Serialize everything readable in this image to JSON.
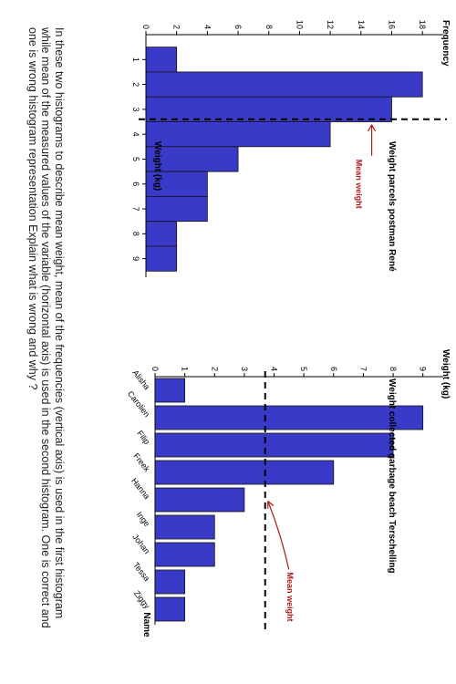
{
  "colors": {
    "bar": "#3a3ac8",
    "bar_edge": "#111111",
    "mean_line": "#000000",
    "annotation": "#b01818"
  },
  "chart_data": [
    {
      "type": "bar",
      "title": "Weight parcels postman René",
      "xlabel": "Weight (kg)",
      "ylabel": "Frequency",
      "categories": [
        "1",
        "2",
        "3",
        "4",
        "5",
        "6",
        "7",
        "8",
        "9"
      ],
      "bins": [
        [
          0.5,
          1.5
        ],
        [
          1.5,
          2.5
        ],
        [
          2.5,
          3.5
        ],
        [
          3.5,
          4.5
        ],
        [
          4.5,
          5.5
        ],
        [
          5.5,
          6.5
        ],
        [
          6.5,
          7.5
        ],
        [
          7.5,
          8.5
        ],
        [
          8.5,
          9.5
        ]
      ],
      "values": [
        2,
        18,
        16,
        12,
        6,
        4,
        4,
        2,
        2
      ],
      "xlim": [
        0,
        9.6
      ],
      "ylim": [
        0,
        19
      ],
      "yticks": [
        0,
        2,
        4,
        6,
        8,
        10,
        12,
        14,
        16,
        18
      ],
      "mean_line": {
        "axis": "x",
        "value": 3.4,
        "label": "Mean weight"
      }
    },
    {
      "type": "bar",
      "title": "Weight collected garbage beach Terschelling",
      "xlabel": "Name",
      "ylabel": "Weight (kg)",
      "categories": [
        "Alisha",
        "Carolien",
        "Filip",
        "Freek",
        "Hanna",
        "Inge",
        "Johan",
        "Tessa",
        "Ziggy"
      ],
      "values": [
        1,
        9,
        8,
        6,
        3,
        2,
        2,
        1,
        1
      ],
      "ylim": [
        0,
        9.5
      ],
      "yticks": [
        0,
        1,
        2,
        3,
        4,
        5,
        6,
        7,
        8,
        9
      ],
      "mean_line": {
        "axis": "y",
        "value": 3.7,
        "label": "Mean weight"
      }
    }
  ],
  "question": "In these two histograms to describe mean weight, mean of the frequencies (vertical axis) is used in the first histogram while mean of the measured values of the variable (horizontal axis) is used in the second histogram. One is correct and one is wrong histogram representation Explain what is wrong and why ?"
}
